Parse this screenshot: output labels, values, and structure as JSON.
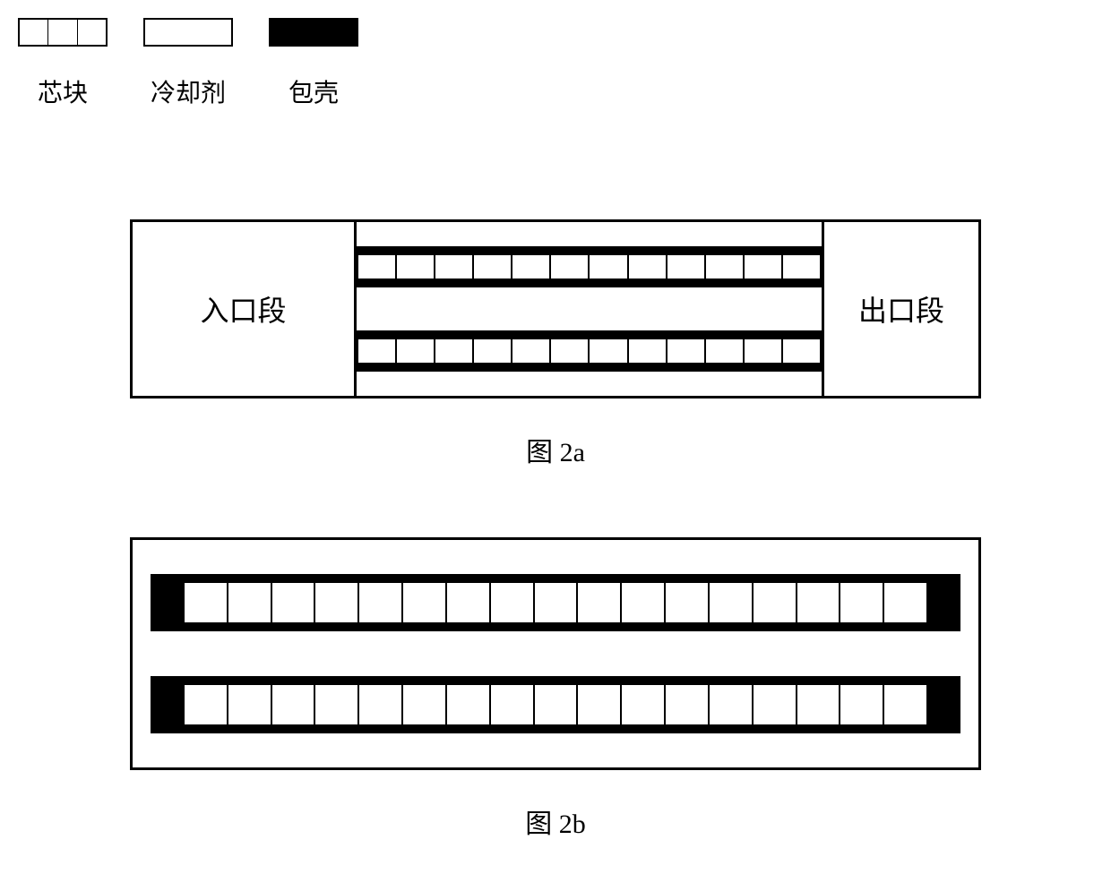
{
  "legend": {
    "items": [
      {
        "label": "芯块",
        "type": "pellet",
        "swatch_stroke": "#000000",
        "divisions": 3
      },
      {
        "label": "冷却剂",
        "type": "coolant",
        "swatch_fill": "#ffffff",
        "swatch_stroke": "#000000"
      },
      {
        "label": "包壳",
        "type": "cladding",
        "swatch_fill": "#000000"
      }
    ],
    "label_fontsize": 28
  },
  "figure_2a": {
    "caption": "图 2a",
    "type": "diagram",
    "inlet_label": "入口段",
    "outlet_label": "出口段",
    "border_color": "#000000",
    "border_width": 3,
    "rods": {
      "count": 2,
      "pellets_per_rod": 12,
      "clad_thickness": 10,
      "clad_color": "#000000",
      "pellet_fill": "#ffffff",
      "pellet_stroke": "#000000"
    },
    "coolant_color": "#ffffff"
  },
  "figure_2b": {
    "caption": "图 2b",
    "type": "diagram",
    "border_color": "#000000",
    "border_width": 3,
    "rods": {
      "count": 2,
      "pellets_per_rod": 17,
      "clad_thickness": 10,
      "endcap_width": 38,
      "clad_color": "#000000",
      "pellet_fill": "#ffffff",
      "pellet_stroke": "#000000"
    },
    "coolant_color": "#ffffff",
    "side_margin": 20
  },
  "caption_fontsize": 30,
  "label_fontsize": 32,
  "colors": {
    "background": "#ffffff",
    "stroke": "#000000"
  }
}
